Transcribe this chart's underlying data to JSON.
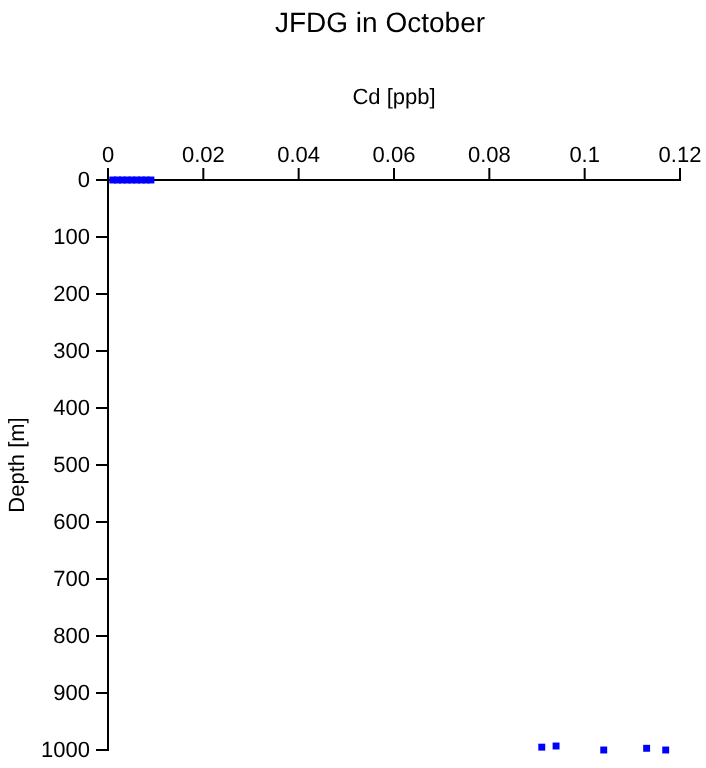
{
  "chart_data": {
    "type": "scatter",
    "title": "JFDG in October",
    "xlabel": "Cd [ppb]",
    "ylabel": "Depth [m]",
    "xlim": [
      0,
      0.12
    ],
    "xticks": [
      0,
      0.02,
      0.04,
      0.06,
      0.08,
      0.1,
      0.12
    ],
    "ylim": [
      1000,
      0
    ],
    "yticks": [
      0,
      100,
      200,
      300,
      400,
      500,
      600,
      700,
      800,
      900,
      1000
    ],
    "marker": "square",
    "grid": false,
    "series": [
      {
        "color": "#0000ff",
        "x": [
          0.001,
          0.002,
          0.003,
          0.004,
          0.005,
          0.006,
          0.007,
          0.008,
          0.009
        ],
        "values": [
          0,
          0,
          0,
          0,
          0,
          0,
          0,
          0,
          0
        ]
      },
      {
        "color": "#0000ff",
        "x": [
          0.091,
          0.094,
          0.104,
          0.113,
          0.117
        ],
        "values": [
          995,
          993,
          1000,
          997,
          1000
        ]
      }
    ]
  }
}
